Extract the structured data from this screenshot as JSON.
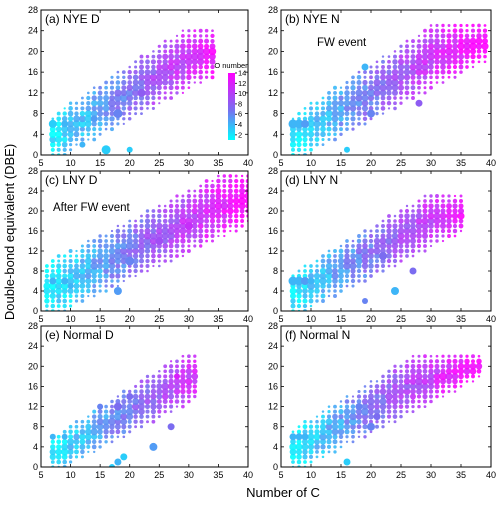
{
  "figure": {
    "xlabel": "Number of C",
    "ylabel": "Double-bond equivalent (DBE)",
    "colorbar": {
      "title": "O number",
      "ticks": [
        2,
        4,
        6,
        8,
        10,
        12,
        14
      ],
      "min": 1,
      "max": 14,
      "low_color": "#00ffff",
      "high_color": "#ff00ff"
    }
  },
  "chart_data": [
    {
      "type": "scatter",
      "title": "(a) NYE D",
      "annotation": "",
      "xlim": [
        5,
        40
      ],
      "ylim": [
        0,
        28
      ],
      "xticks": [
        5,
        10,
        15,
        20,
        25,
        30,
        35,
        40
      ],
      "yticks": [
        0,
        4,
        8,
        12,
        16,
        20,
        24,
        28
      ],
      "envelope": {
        "x_range": [
          7,
          34
        ],
        "lower": {
          "x0": 10,
          "y0": 1,
          "slope": 0.6
        },
        "upper": {
          "x0": 8,
          "y0": 8,
          "slope": 0.75
        },
        "ymax": 24
      },
      "o_trend": {
        "at_x": 10,
        "value": 3,
        "slope": 0.42
      },
      "highlights": [
        {
          "x": 7,
          "y": 6,
          "o": 3,
          "r": 4
        },
        {
          "x": 9,
          "y": 6,
          "o": 4,
          "r": 3.5
        },
        {
          "x": 16,
          "y": 1,
          "o": 3,
          "r": 4.5
        },
        {
          "x": 20,
          "y": 1,
          "o": 3,
          "r": 3
        },
        {
          "x": 12,
          "y": 2,
          "o": 4,
          "r": 3
        },
        {
          "x": 18,
          "y": 8,
          "o": 6,
          "r": 4.5
        },
        {
          "x": 22,
          "y": 12,
          "o": 8,
          "r": 4
        },
        {
          "x": 14,
          "y": 7,
          "o": 5,
          "r": 3.5
        }
      ]
    },
    {
      "type": "scatter",
      "title": "(b) NYE N",
      "annotation": "FW event",
      "xlim": [
        5,
        40
      ],
      "ylim": [
        0,
        28
      ],
      "xticks": [
        5,
        10,
        15,
        20,
        25,
        30,
        35,
        40
      ],
      "yticks": [
        0,
        4,
        8,
        12,
        16,
        20,
        24,
        28
      ],
      "envelope": {
        "x_range": [
          7,
          39
        ],
        "lower": {
          "x0": 10,
          "y0": 1,
          "slope": 0.6
        },
        "upper": {
          "x0": 8,
          "y0": 8,
          "slope": 0.75
        },
        "ymax": 25
      },
      "o_trend": {
        "at_x": 10,
        "value": 3,
        "slope": 0.4
      },
      "highlights": [
        {
          "x": 7,
          "y": 6,
          "o": 4,
          "r": 4.5
        },
        {
          "x": 8,
          "y": 6,
          "o": 4,
          "r": 4.5
        },
        {
          "x": 9,
          "y": 6,
          "o": 5,
          "r": 4
        },
        {
          "x": 16,
          "y": 1,
          "o": 3,
          "r": 3
        },
        {
          "x": 19,
          "y": 17,
          "o": 4,
          "r": 3.5
        },
        {
          "x": 20,
          "y": 8,
          "o": 6,
          "r": 4
        },
        {
          "x": 28,
          "y": 10,
          "o": 8,
          "r": 3.5
        }
      ]
    },
    {
      "type": "scatter",
      "title": "(c) LNY D",
      "annotation": "After FW event",
      "xlim": [
        5,
        40
      ],
      "ylim": [
        0,
        28
      ],
      "xticks": [
        5,
        10,
        15,
        20,
        25,
        30,
        35,
        40
      ],
      "yticks": [
        0,
        4,
        8,
        12,
        16,
        20,
        24,
        28
      ],
      "envelope": {
        "x_range": [
          6,
          40
        ],
        "lower": {
          "x0": 10,
          "y0": 1,
          "slope": 0.55
        },
        "upper": {
          "x0": 7,
          "y0": 10,
          "slope": 0.6
        },
        "ymax": 27
      },
      "o_trend": {
        "at_x": 10,
        "value": 3,
        "slope": 0.38
      },
      "highlights": [
        {
          "x": 7,
          "y": 6,
          "o": 4,
          "r": 3.5
        },
        {
          "x": 9,
          "y": 6,
          "o": 4,
          "r": 3.5
        },
        {
          "x": 18,
          "y": 4,
          "o": 5,
          "r": 4
        },
        {
          "x": 10,
          "y": 5,
          "o": 4,
          "r": 3
        },
        {
          "x": 20,
          "y": 10,
          "o": 6,
          "r": 4.5
        },
        {
          "x": 25,
          "y": 14,
          "o": 9,
          "r": 4
        },
        {
          "x": 30,
          "y": 17,
          "o": 11,
          "r": 4
        }
      ]
    },
    {
      "type": "scatter",
      "title": "(d) LNY N",
      "annotation": "",
      "xlim": [
        5,
        40
      ],
      "ylim": [
        0,
        28
      ],
      "xticks": [
        5,
        10,
        15,
        20,
        25,
        30,
        35,
        40
      ],
      "yticks": [
        0,
        4,
        8,
        12,
        16,
        20,
        24,
        28
      ],
      "envelope": {
        "x_range": [
          7,
          35
        ],
        "lower": {
          "x0": 10,
          "y0": 1,
          "slope": 0.6
        },
        "upper": {
          "x0": 8,
          "y0": 8,
          "slope": 0.7
        },
        "ymax": 23
      },
      "o_trend": {
        "at_x": 10,
        "value": 3,
        "slope": 0.4
      },
      "highlights": [
        {
          "x": 7,
          "y": 6,
          "o": 4,
          "r": 4.5
        },
        {
          "x": 8,
          "y": 6,
          "o": 4,
          "r": 4.5
        },
        {
          "x": 9,
          "y": 6,
          "o": 5,
          "r": 4
        },
        {
          "x": 10,
          "y": 6,
          "o": 4,
          "r": 3.5
        },
        {
          "x": 24,
          "y": 4,
          "o": 4,
          "r": 4
        },
        {
          "x": 27,
          "y": 8,
          "o": 7,
          "r": 3.5
        },
        {
          "x": 19,
          "y": 2,
          "o": 6,
          "r": 3
        },
        {
          "x": 22,
          "y": 11,
          "o": 7,
          "r": 4
        }
      ]
    },
    {
      "type": "scatter",
      "title": "(e) Normal D",
      "annotation": "",
      "xlim": [
        5,
        40
      ],
      "ylim": [
        0,
        28
      ],
      "xticks": [
        5,
        10,
        15,
        20,
        25,
        30,
        35,
        40
      ],
      "yticks": [
        0,
        4,
        8,
        12,
        16,
        20,
        24,
        28
      ],
      "envelope": {
        "x_range": [
          7,
          31
        ],
        "lower": {
          "x0": 10,
          "y0": 1,
          "slope": 0.6
        },
        "upper": {
          "x0": 9,
          "y0": 7,
          "slope": 0.75
        },
        "ymax": 22
      },
      "o_trend": {
        "at_x": 10,
        "value": 3,
        "slope": 0.4
      },
      "highlights": [
        {
          "x": 7,
          "y": 6,
          "o": 4,
          "r": 3
        },
        {
          "x": 9,
          "y": 6,
          "o": 4,
          "r": 3
        },
        {
          "x": 17,
          "y": 0,
          "o": 3,
          "r": 3
        },
        {
          "x": 18,
          "y": 1,
          "o": 4,
          "r": 3.5
        },
        {
          "x": 19,
          "y": 2,
          "o": 3,
          "r": 3.5
        },
        {
          "x": 18,
          "y": 12,
          "o": 7,
          "r": 4
        },
        {
          "x": 20,
          "y": 14,
          "o": 7,
          "r": 3.5
        },
        {
          "x": 24,
          "y": 4,
          "o": 5,
          "r": 4
        },
        {
          "x": 27,
          "y": 8,
          "o": 7,
          "r": 3.5
        },
        {
          "x": 28,
          "y": 18,
          "o": 12,
          "r": 3
        },
        {
          "x": 15,
          "y": 12,
          "o": 6,
          "r": 3
        }
      ]
    },
    {
      "type": "scatter",
      "title": "(f) Normal N",
      "annotation": "",
      "xlim": [
        5,
        40
      ],
      "ylim": [
        0,
        28
      ],
      "xticks": [
        5,
        10,
        15,
        20,
        25,
        30,
        35,
        40
      ],
      "yticks": [
        0,
        4,
        8,
        12,
        16,
        20,
        24,
        28
      ],
      "envelope": {
        "x_range": [
          7,
          38
        ],
        "lower": {
          "x0": 10,
          "y0": 1,
          "slope": 0.6
        },
        "upper": {
          "x0": 8,
          "y0": 8,
          "slope": 0.72
        },
        "ymax": 22
      },
      "o_trend": {
        "at_x": 10,
        "value": 3,
        "slope": 0.4
      },
      "highlights": [
        {
          "x": 7,
          "y": 6,
          "o": 4,
          "r": 3.5
        },
        {
          "x": 8,
          "y": 6,
          "o": 4,
          "r": 3.5
        },
        {
          "x": 9,
          "y": 6,
          "o": 4,
          "r": 3.5
        },
        {
          "x": 16,
          "y": 1,
          "o": 3,
          "r": 3.5
        },
        {
          "x": 20,
          "y": 8,
          "o": 6,
          "r": 4
        },
        {
          "x": 21,
          "y": 10,
          "o": 7,
          "r": 3.5
        },
        {
          "x": 18,
          "y": 12,
          "o": 6,
          "r": 3.5
        }
      ]
    }
  ]
}
